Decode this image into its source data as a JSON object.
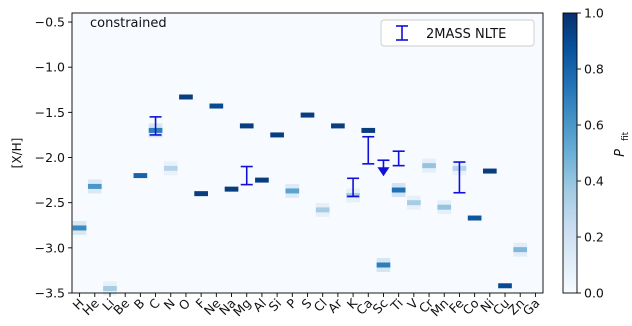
{
  "chart_data": {
    "type": "heatmap",
    "annotation": "constrained",
    "ylabel": "[X/H]",
    "ylim": [
      -3.5,
      -0.4
    ],
    "yticks": [
      -0.5,
      -1.0,
      -1.5,
      -2.0,
      -2.5,
      -3.0,
      -3.5
    ],
    "ytick_labels": [
      "−0.5",
      "−1.0",
      "−1.5",
      "−2.0",
      "−2.5",
      "−3.0",
      "−3.5"
    ],
    "categories": [
      "H",
      "He",
      "Li",
      "Be",
      "B",
      "C",
      "N",
      "O",
      "F",
      "Ne",
      "Na",
      "Mg",
      "Al",
      "Si",
      "P",
      "S",
      "Cl",
      "Ar",
      "K",
      "Ca",
      "Sc",
      "Ti",
      "V",
      "Cr",
      "Mn",
      "Fe",
      "Co",
      "Ni",
      "Cu",
      "Zn",
      "Ga"
    ],
    "heat_cells": [
      {
        "x": "H",
        "y": -2.78,
        "v": 0.65
      },
      {
        "x": "He",
        "y": -2.32,
        "v": 0.6
      },
      {
        "x": "Li",
        "y": -3.45,
        "v": 0.35
      },
      {
        "x": "B",
        "y": -2.2,
        "v": 0.8
      },
      {
        "x": "C",
        "y": -1.7,
        "v": 0.7
      },
      {
        "x": "N",
        "y": -2.12,
        "v": 0.3
      },
      {
        "x": "O",
        "y": -1.33,
        "v": 0.95
      },
      {
        "x": "F",
        "y": -2.4,
        "v": 0.95
      },
      {
        "x": "Ne",
        "y": -1.43,
        "v": 0.9
      },
      {
        "x": "Na",
        "y": -2.35,
        "v": 0.95
      },
      {
        "x": "Mg",
        "y": -1.65,
        "v": 0.95
      },
      {
        "x": "Al",
        "y": -2.25,
        "v": 0.95
      },
      {
        "x": "Si",
        "y": -1.75,
        "v": 0.95
      },
      {
        "x": "P",
        "y": -2.37,
        "v": 0.55
      },
      {
        "x": "S",
        "y": -1.53,
        "v": 0.95
      },
      {
        "x": "Cl",
        "y": -2.58,
        "v": 0.35
      },
      {
        "x": "Ar",
        "y": -1.65,
        "v": 0.95
      },
      {
        "x": "K",
        "y": -2.42,
        "v": 0.35
      },
      {
        "x": "Ca",
        "y": -1.7,
        "v": 0.95
      },
      {
        "x": "Sc",
        "y": -3.19,
        "v": 0.7
      },
      {
        "x": "Ti",
        "y": -2.36,
        "v": 0.75
      },
      {
        "x": "V",
        "y": -2.5,
        "v": 0.35
      },
      {
        "x": "Cr",
        "y": -2.09,
        "v": 0.4
      },
      {
        "x": "Mn",
        "y": -2.55,
        "v": 0.4
      },
      {
        "x": "Fe",
        "y": -2.12,
        "v": 0.3
      },
      {
        "x": "Co",
        "y": -2.67,
        "v": 0.85
      },
      {
        "x": "Ni",
        "y": -2.15,
        "v": 0.95
      },
      {
        "x": "Cu",
        "y": -3.42,
        "v": 0.9
      },
      {
        "x": "Zn",
        "y": -3.02,
        "v": 0.45
      }
    ],
    "errorbars": [
      {
        "x": "C",
        "y": -1.65,
        "err": 0.1
      },
      {
        "x": "Mg",
        "y": -2.2,
        "err": 0.1
      },
      {
        "x": "Ca",
        "y": -1.92,
        "err": 0.15
      },
      {
        "x": "K",
        "y": -2.33,
        "err": 0.1
      },
      {
        "x": "Ti",
        "y": -2.01,
        "err": 0.08
      },
      {
        "x": "Fe",
        "y": -2.22,
        "err": 0.17
      }
    ],
    "upper_limits": [
      {
        "x": "Sc",
        "y": -2.03
      }
    ],
    "legend": {
      "label": "2MASS NLTE",
      "position": "top-right"
    },
    "colorbar": {
      "label": "P",
      "label_subscript": "fit",
      "range": [
        0.0,
        1.0
      ],
      "ticks": [
        0.0,
        0.2,
        0.4,
        0.6,
        0.8,
        1.0
      ],
      "tick_labels": [
        "0.0",
        "0.2",
        "0.4",
        "0.6",
        "0.8",
        "1.0"
      ]
    },
    "colors": {
      "errorbar": "#1010d8",
      "background": "#f7fbff",
      "cmap_low": "#f7fbff",
      "cmap_high": "#08306b"
    }
  }
}
